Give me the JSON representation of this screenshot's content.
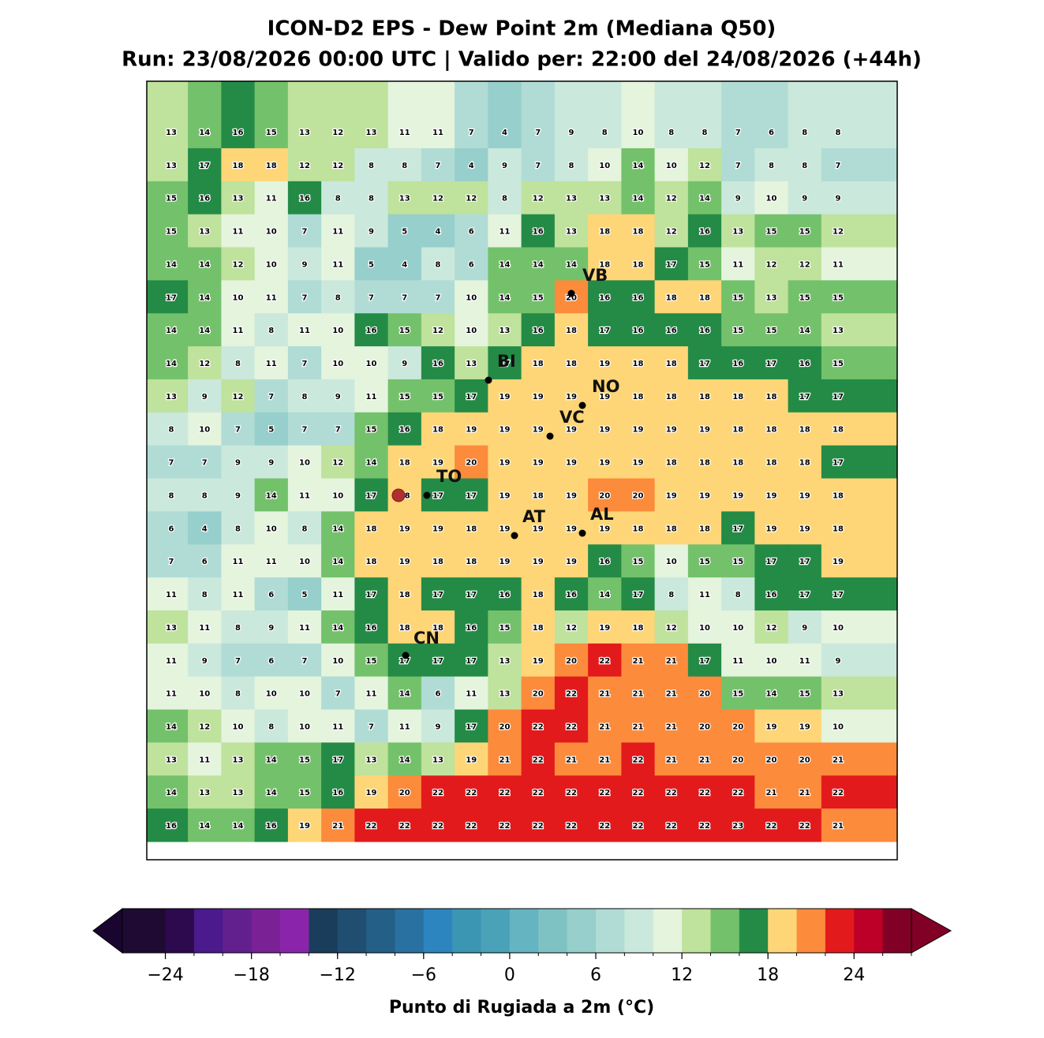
{
  "chart_data": {
    "type": "heatmap",
    "title": "ICON-D2 EPS - Dew Point 2m (Mediana Q50)",
    "subtitle": "Run: 23/08/2026 00:00 UTC | Valido per: 22:00 del 24/08/2026 (+44h)",
    "values": [
      [
        13,
        14,
        16,
        15,
        13,
        12,
        13,
        11,
        11,
        7,
        4,
        7,
        9,
        8,
        10,
        8,
        8,
        7,
        6,
        8,
        8
      ],
      [
        13,
        17,
        18,
        18,
        12,
        12,
        8,
        8,
        7,
        4,
        9,
        7,
        8,
        10,
        14,
        10,
        12,
        7,
        8,
        8,
        7
      ],
      [
        15,
        16,
        13,
        11,
        16,
        8,
        8,
        13,
        12,
        12,
        8,
        12,
        13,
        13,
        14,
        12,
        14,
        9,
        10,
        9,
        9
      ],
      [
        15,
        13,
        11,
        10,
        7,
        11,
        9,
        5,
        4,
        6,
        11,
        16,
        13,
        18,
        18,
        12,
        16,
        13,
        15,
        15,
        12
      ],
      [
        14,
        14,
        12,
        10,
        9,
        11,
        5,
        4,
        8,
        6,
        14,
        14,
        14,
        18,
        18,
        17,
        15,
        11,
        12,
        12,
        11
      ],
      [
        17,
        14,
        10,
        11,
        7,
        8,
        7,
        7,
        7,
        10,
        14,
        15,
        20,
        16,
        16,
        18,
        18,
        15,
        13,
        15,
        15
      ],
      [
        14,
        14,
        11,
        8,
        11,
        10,
        16,
        15,
        12,
        10,
        13,
        16,
        18,
        17,
        16,
        16,
        16,
        15,
        15,
        14,
        13
      ],
      [
        14,
        12,
        8,
        11,
        7,
        10,
        10,
        9,
        16,
        13,
        17,
        18,
        18,
        19,
        18,
        18,
        17,
        16,
        17,
        16,
        15
      ],
      [
        13,
        9,
        12,
        7,
        8,
        9,
        11,
        15,
        15,
        17,
        19,
        19,
        19,
        19,
        18,
        18,
        18,
        18,
        18,
        17,
        17
      ],
      [
        8,
        10,
        7,
        5,
        7,
        7,
        15,
        16,
        18,
        19,
        19,
        19,
        19,
        19,
        19,
        19,
        19,
        18,
        18,
        18,
        18
      ],
      [
        7,
        7,
        9,
        9,
        10,
        12,
        14,
        18,
        19,
        20,
        19,
        19,
        19,
        19,
        19,
        18,
        18,
        18,
        18,
        18,
        17
      ],
      [
        8,
        8,
        9,
        14,
        11,
        10,
        17,
        18,
        17,
        17,
        19,
        18,
        19,
        20,
        20,
        19,
        19,
        19,
        19,
        19,
        18
      ],
      [
        6,
        4,
        8,
        10,
        8,
        14,
        18,
        19,
        19,
        18,
        19,
        19,
        19,
        19,
        18,
        18,
        18,
        17,
        19,
        19,
        18
      ],
      [
        7,
        6,
        11,
        11,
        10,
        14,
        18,
        19,
        18,
        18,
        19,
        19,
        19,
        16,
        15,
        10,
        15,
        15,
        17,
        17,
        19
      ],
      [
        11,
        8,
        11,
        6,
        5,
        11,
        17,
        18,
        17,
        17,
        16,
        18,
        16,
        14,
        17,
        8,
        11,
        8,
        16,
        17,
        17
      ],
      [
        13,
        11,
        8,
        9,
        11,
        14,
        16,
        18,
        18,
        16,
        15,
        18,
        12,
        19,
        18,
        12,
        10,
        10,
        12,
        9,
        10
      ],
      [
        11,
        9,
        7,
        6,
        7,
        10,
        15,
        17,
        17,
        17,
        13,
        19,
        20,
        22,
        21,
        21,
        17,
        11,
        10,
        11,
        9
      ],
      [
        11,
        10,
        8,
        10,
        10,
        7,
        11,
        14,
        6,
        11,
        13,
        20,
        22,
        21,
        21,
        21,
        20,
        15,
        14,
        15,
        13
      ],
      [
        14,
        12,
        10,
        8,
        10,
        11,
        7,
        11,
        9,
        17,
        20,
        22,
        22,
        21,
        21,
        21,
        20,
        20,
        19,
        19,
        10
      ],
      [
        13,
        11,
        13,
        14,
        15,
        17,
        13,
        14,
        13,
        19,
        21,
        22,
        21,
        21,
        22,
        21,
        21,
        20,
        20,
        20,
        21
      ],
      [
        14,
        13,
        13,
        14,
        15,
        16,
        19,
        20,
        22,
        22,
        22,
        22,
        22,
        22,
        22,
        22,
        22,
        22,
        21,
        21,
        22
      ],
      [
        16,
        14,
        14,
        16,
        19,
        21,
        22,
        22,
        22,
        22,
        22,
        22,
        22,
        22,
        22,
        22,
        22,
        23,
        22,
        22,
        21
      ]
    ],
    "cities": [
      "VB",
      "BI",
      "NO",
      "VC",
      "TO",
      "AT",
      "AL",
      "CN"
    ],
    "colorbar": {
      "label": "Punto di Rugiada a 2m (°C)",
      "levels": [
        -27,
        -24,
        -22,
        -20,
        -18,
        -16,
        -14,
        -12,
        -10,
        -8,
        -6,
        -4,
        -2,
        0,
        2,
        4,
        6,
        8,
        10,
        12,
        14,
        16,
        18,
        20,
        22,
        24,
        26,
        28
      ],
      "colors": [
        "#1e0a33",
        "#2d0a4e",
        "#4b1a8c",
        "#62208f",
        "#7a2196",
        "#8a25ab",
        "#1b3d5c",
        "#1f4e70",
        "#245f87",
        "#2971a0",
        "#2d85bf",
        "#3a96b3",
        "#4aa2b8",
        "#64b4c2",
        "#7fc2c4",
        "#96cfcb",
        "#b0dcd5",
        "#cae8dc",
        "#e4f4dd",
        "#bfe29c",
        "#74c16b",
        "#238b46",
        "#fed677",
        "#fc8b3c",
        "#e31a1c",
        "#bd0027",
        "#800026"
      ],
      "under_color": "#1a0530",
      "over_color": "#800026",
      "ticks": [
        {
          "value": -24,
          "label": "−24"
        },
        {
          "value": -18,
          "label": "−18"
        },
        {
          "value": -12,
          "label": "−12"
        },
        {
          "value": -6,
          "label": "−6"
        },
        0,
        6,
        12,
        18,
        24
      ]
    }
  }
}
